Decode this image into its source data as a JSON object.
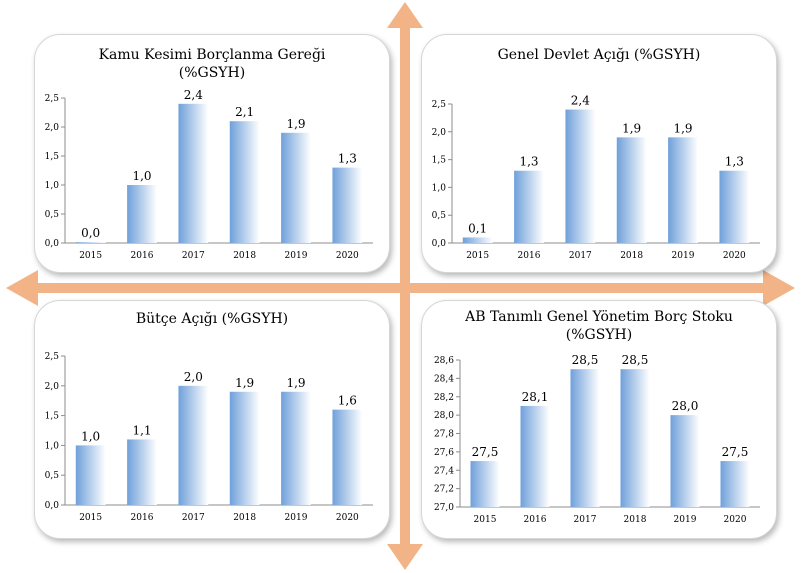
{
  "colors": {
    "arrow": "#f2b487",
    "bar_top": "#6fa0da",
    "bar_bottom": "#ffffff",
    "axis": "#8c8c8c"
  },
  "chart_data": [
    {
      "type": "bar",
      "title_lines": [
        "Kamu Kesimi Borçlanma Gereği",
        "(%GSYH)"
      ],
      "categories": [
        "2015",
        "2016",
        "2017",
        "2018",
        "2019",
        "2020"
      ],
      "values": [
        0.0,
        1.0,
        2.4,
        2.1,
        1.9,
        1.3
      ],
      "data_labels": [
        "0,0",
        "1,0",
        "2,4",
        "2,1",
        "1,9",
        "1,3"
      ],
      "yticks": [
        "0,0",
        "0,5",
        "1,0",
        "1,5",
        "2,0",
        "2,5"
      ],
      "ylim": [
        0,
        2.5
      ],
      "legend": "none",
      "grid": false
    },
    {
      "type": "bar",
      "title_lines": [
        "Genel Devlet Açığı (%GSYH)"
      ],
      "categories": [
        "2015",
        "2016",
        "2017",
        "2018",
        "2019",
        "2020"
      ],
      "values": [
        0.1,
        1.3,
        2.4,
        1.9,
        1.9,
        1.3
      ],
      "data_labels": [
        "0,1",
        "1,3",
        "2,4",
        "1,9",
        "1,9",
        "1,3"
      ],
      "yticks": [
        "0,0",
        "0,5",
        "1,0",
        "1,5",
        "2,0",
        "2,5"
      ],
      "ylim": [
        0,
        2.5
      ],
      "legend": "none",
      "grid": false
    },
    {
      "type": "bar",
      "title_lines": [
        "Bütçe Açığı (%GSYH)"
      ],
      "categories": [
        "2015",
        "2016",
        "2017",
        "2018",
        "2019",
        "2020"
      ],
      "values": [
        1.0,
        1.1,
        2.0,
        1.9,
        1.9,
        1.6
      ],
      "data_labels": [
        "1,0",
        "1,1",
        "2,0",
        "1,9",
        "1,9",
        "1,6"
      ],
      "yticks": [
        "0,0",
        "0,5",
        "1,0",
        "1,5",
        "2,0",
        "2,5"
      ],
      "ylim": [
        0,
        2.5
      ],
      "legend": "none",
      "grid": false
    },
    {
      "type": "bar",
      "title_lines": [
        "AB Tanımlı Genel Yönetim Borç Stoku",
        "(%GSYH)"
      ],
      "categories": [
        "2015",
        "2016",
        "2017",
        "2018",
        "2019",
        "2020"
      ],
      "values": [
        27.5,
        28.1,
        28.5,
        28.5,
        28.0,
        27.5
      ],
      "data_labels": [
        "27,5",
        "28,1",
        "28,5",
        "28,5",
        "28,0",
        "27,5"
      ],
      "yticks": [
        "27,0",
        "27,2",
        "27,4",
        "27,6",
        "27,8",
        "28,0",
        "28,2",
        "28,4",
        "28,6"
      ],
      "ylim": [
        27.0,
        28.6
      ],
      "legend": "none",
      "grid": false
    }
  ]
}
